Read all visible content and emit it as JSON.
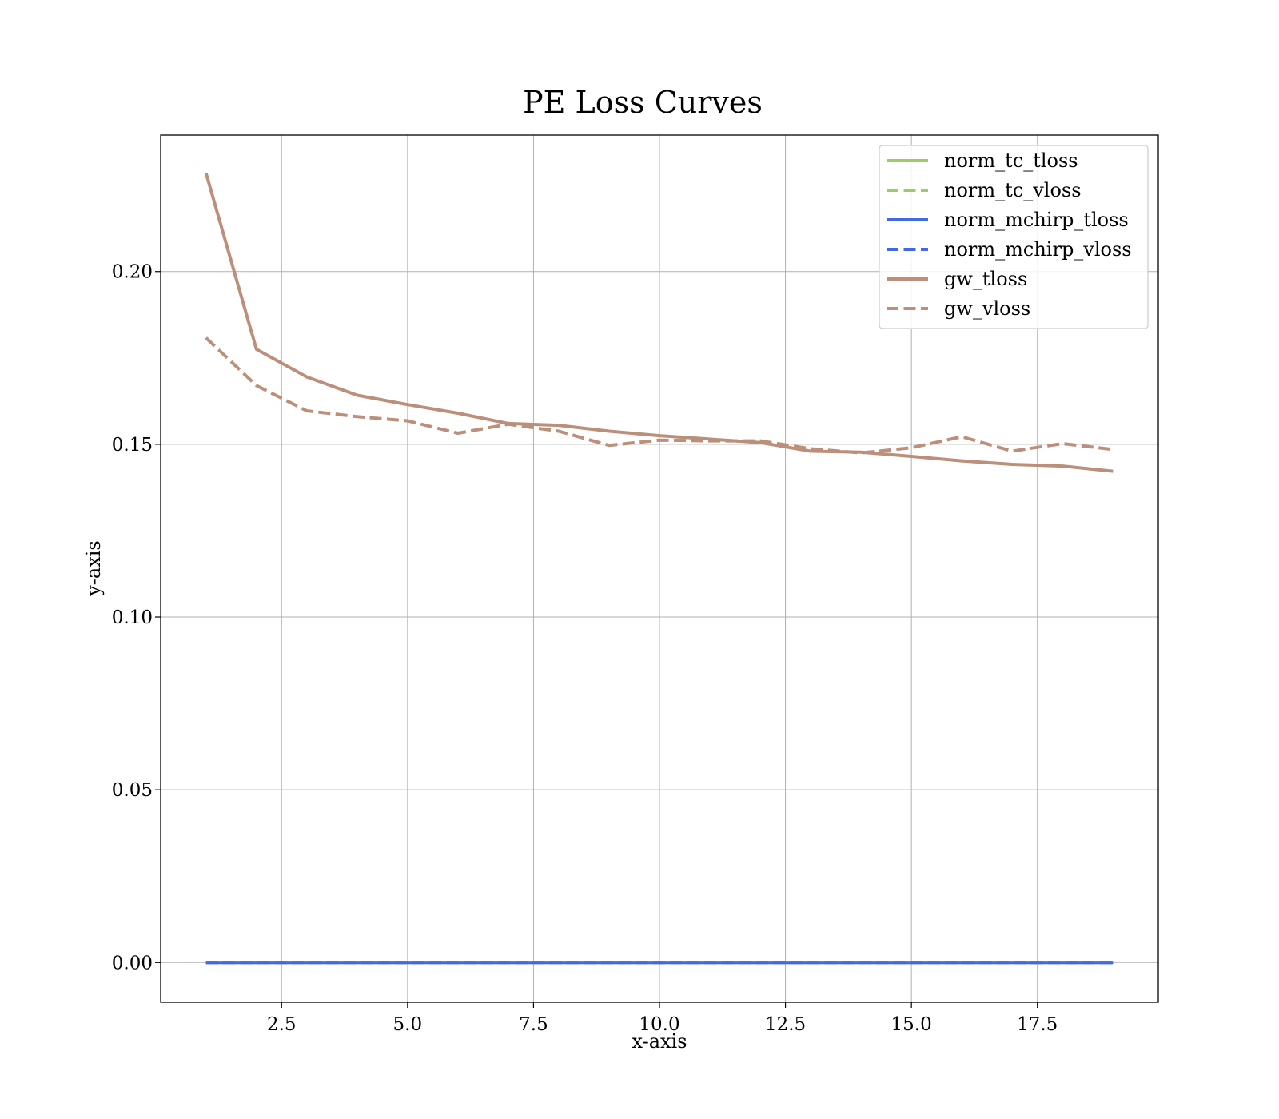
{
  "chart_data": {
    "type": "line",
    "title": "PE Loss Curves",
    "xlabel": "x-axis",
    "ylabel": "y-axis",
    "xlim": [
      0.1,
      19.9
    ],
    "ylim": [
      -0.0115,
      0.2395
    ],
    "x_ticks": [
      {
        "value": 2.5,
        "label": "2.5"
      },
      {
        "value": 5.0,
        "label": "5.0"
      },
      {
        "value": 7.5,
        "label": "7.5"
      },
      {
        "value": 10.0,
        "label": "10.0"
      },
      {
        "value": 12.5,
        "label": "12.5"
      },
      {
        "value": 15.0,
        "label": "15.0"
      },
      {
        "value": 17.5,
        "label": "17.5"
      }
    ],
    "y_ticks": [
      {
        "value": 0.0,
        "label": "0.00"
      },
      {
        "value": 0.05,
        "label": "0.05"
      },
      {
        "value": 0.1,
        "label": "0.10"
      },
      {
        "value": 0.15,
        "label": "0.15"
      },
      {
        "value": 0.2,
        "label": "0.20"
      }
    ],
    "grid": true,
    "legend_position": "top-right",
    "x": [
      1,
      2,
      3,
      4,
      5,
      6,
      7,
      8,
      9,
      10,
      11,
      12,
      13,
      14,
      15,
      16,
      17,
      18,
      19
    ],
    "series": [
      {
        "name": "norm_tc_tloss",
        "color": "#9acd66",
        "dash": "solid",
        "values": [
          0,
          0,
          0,
          0,
          0,
          0,
          0,
          0,
          0,
          0,
          0,
          0,
          0,
          0,
          0,
          0,
          0,
          0,
          0
        ]
      },
      {
        "name": "norm_tc_vloss",
        "color": "#9acd66",
        "dash": "dashed",
        "values": [
          0,
          0,
          0,
          0,
          0,
          0,
          0,
          0,
          0,
          0,
          0,
          0,
          0,
          0,
          0,
          0,
          0,
          0,
          0
        ]
      },
      {
        "name": "norm_mchirp_tloss",
        "color": "#4169e1",
        "dash": "solid",
        "values": [
          0,
          0,
          0,
          0,
          0,
          0,
          0,
          0,
          0,
          0,
          0,
          0,
          0,
          0,
          0,
          0,
          0,
          0,
          0
        ]
      },
      {
        "name": "norm_mchirp_vloss",
        "color": "#4169e1",
        "dash": "dashed",
        "values": [
          0,
          0,
          0,
          0,
          0,
          0,
          0,
          0,
          0,
          0,
          0,
          0,
          0,
          0,
          0,
          0,
          0,
          0,
          0
        ]
      },
      {
        "name": "gw_tloss",
        "color": "#bc8f7a",
        "dash": "solid",
        "values": [
          0.2285,
          0.1775,
          0.1695,
          0.1642,
          0.1615,
          0.159,
          0.156,
          0.1555,
          0.1538,
          0.1525,
          0.1515,
          0.1505,
          0.148,
          0.1477,
          0.1465,
          0.1452,
          0.1442,
          0.1437,
          0.1422
        ]
      },
      {
        "name": "gw_vloss",
        "color": "#bc8f7a",
        "dash": "dashed",
        "values": [
          0.1808,
          0.167,
          0.1597,
          0.158,
          0.1568,
          0.1532,
          0.1558,
          0.1538,
          0.1497,
          0.1512,
          0.151,
          0.151,
          0.1487,
          0.1475,
          0.149,
          0.1522,
          0.148,
          0.1502,
          0.1485
        ]
      }
    ]
  }
}
